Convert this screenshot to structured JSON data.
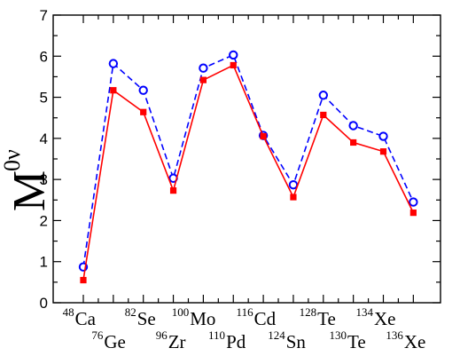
{
  "chart_data": {
    "type": "line",
    "ylabel": {
      "base": "M",
      "sup": "0ν"
    },
    "ylim": [
      0,
      7
    ],
    "yticks": [
      "0",
      "1",
      "2",
      "3",
      "4",
      "5",
      "6",
      "7"
    ],
    "categories": [
      {
        "mass": "48",
        "element": "Ca"
      },
      {
        "mass": "76",
        "element": "Ge"
      },
      {
        "mass": "82",
        "element": "Se"
      },
      {
        "mass": "96",
        "element": "Zr"
      },
      {
        "mass": "100",
        "element": "Mo"
      },
      {
        "mass": "110",
        "element": "Pd"
      },
      {
        "mass": "116",
        "element": "Cd"
      },
      {
        "mass": "124",
        "element": "Sn"
      },
      {
        "mass": "128",
        "element": "Te"
      },
      {
        "mass": "130",
        "element": "Te"
      },
      {
        "mass": "134",
        "element": "Xe"
      },
      {
        "mass": "136",
        "element": "Xe"
      }
    ],
    "series": [
      {
        "color": "#0000ff",
        "line_style": "dashed",
        "marker": "open-circle",
        "values": [
          0.87,
          5.82,
          5.17,
          3.03,
          5.71,
          6.03,
          4.07,
          2.87,
          5.05,
          4.31,
          4.05,
          2.45
        ]
      },
      {
        "color": "#ff0000",
        "line_style": "solid",
        "marker": "filled-square",
        "values": [
          0.55,
          5.17,
          4.64,
          2.73,
          5.42,
          5.78,
          4.05,
          2.57,
          4.57,
          3.9,
          3.68,
          2.19
        ]
      }
    ],
    "grid": false,
    "legend": "none"
  }
}
